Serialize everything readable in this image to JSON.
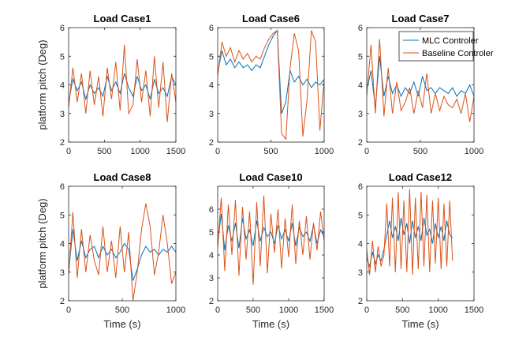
{
  "legend": {
    "location": "top-right of Load Case7",
    "entries": [
      {
        "label": "MLC Controler",
        "color": "#0072BD"
      },
      {
        "label": "Baseline Controler",
        "color": "#D95319"
      }
    ]
  },
  "chart_data": [
    {
      "type": "line",
      "title": "Load Case1",
      "xlabel": "",
      "ylabel": "platform pitch (Deg)",
      "xlim": [
        0,
        1500
      ],
      "ylim": [
        2,
        6
      ],
      "xticks": [
        0,
        500,
        1000,
        1500
      ],
      "yticks": [
        2,
        3,
        4,
        5,
        6
      ],
      "grid": false,
      "series": [
        {
          "name": "MLC Controler",
          "color": "#0072BD",
          "x": [
            0,
            60,
            120,
            180,
            240,
            300,
            360,
            420,
            480,
            540,
            600,
            660,
            720,
            780,
            840,
            900,
            960,
            1020,
            1080,
            1140,
            1200,
            1260,
            1320,
            1380,
            1440,
            1500
          ],
          "y": [
            3.4,
            4.2,
            3.8,
            4.1,
            3.5,
            4.0,
            3.7,
            3.9,
            3.6,
            4.3,
            3.8,
            4.1,
            3.7,
            4.4,
            3.9,
            3.6,
            4.3,
            3.8,
            4.0,
            3.5,
            4.2,
            3.7,
            3.9,
            3.6,
            4.3,
            4.0
          ]
        },
        {
          "name": "Baseline Controler",
          "color": "#D95319",
          "x": [
            0,
            60,
            120,
            180,
            240,
            300,
            360,
            420,
            480,
            540,
            600,
            660,
            720,
            780,
            840,
            900,
            960,
            1020,
            1080,
            1140,
            1200,
            1260,
            1320,
            1380,
            1440,
            1500
          ],
          "y": [
            3.2,
            4.6,
            3.4,
            4.4,
            3.0,
            4.5,
            3.3,
            4.3,
            2.9,
            4.6,
            3.5,
            4.8,
            3.1,
            5.4,
            3.0,
            3.3,
            4.9,
            3.4,
            4.5,
            2.9,
            5.0,
            3.2,
            4.8,
            2.7,
            4.4,
            3.4
          ]
        }
      ]
    },
    {
      "type": "line",
      "title": "Load Case6",
      "xlabel": "",
      "ylabel": "",
      "xlim": [
        0,
        1000
      ],
      "ylim": [
        2,
        6
      ],
      "xticks": [
        0,
        500,
        1000
      ],
      "yticks": [
        2,
        3,
        4,
        5,
        6
      ],
      "grid": false,
      "series": [
        {
          "name": "MLC Controler",
          "color": "#0072BD",
          "x": [
            0,
            40,
            80,
            120,
            160,
            200,
            240,
            280,
            320,
            360,
            400,
            440,
            480,
            520,
            560,
            600,
            640,
            680,
            720,
            760,
            800,
            840,
            880,
            920,
            960,
            1000
          ],
          "y": [
            4.4,
            5.2,
            4.7,
            4.9,
            4.6,
            4.8,
            4.6,
            4.7,
            4.5,
            4.7,
            4.6,
            5.0,
            5.4,
            5.7,
            5.9,
            3.0,
            3.4,
            4.5,
            4.1,
            4.3,
            4.0,
            4.2,
            3.9,
            4.1,
            4.0,
            4.2
          ]
        },
        {
          "name": "Baseline Controler",
          "color": "#D95319",
          "x": [
            0,
            40,
            80,
            120,
            160,
            200,
            240,
            280,
            320,
            360,
            400,
            440,
            480,
            520,
            560,
            600,
            640,
            680,
            720,
            760,
            800,
            840,
            880,
            920,
            960,
            1000
          ],
          "y": [
            4.3,
            5.5,
            5.0,
            5.3,
            4.8,
            5.2,
            4.9,
            5.1,
            4.8,
            5.0,
            4.9,
            5.3,
            5.6,
            5.8,
            5.9,
            2.3,
            2.1,
            4.6,
            5.8,
            5.2,
            2.2,
            3.5,
            5.9,
            5.5,
            2.4,
            4.2
          ]
        }
      ]
    },
    {
      "type": "line",
      "title": "Load Case7",
      "xlabel": "",
      "ylabel": "",
      "xlim": [
        0,
        1000
      ],
      "ylim": [
        2,
        6
      ],
      "xticks": [
        0,
        500,
        1000
      ],
      "yticks": [
        2,
        3,
        4,
        5,
        6
      ],
      "grid": false,
      "series": [
        {
          "name": "MLC Controler",
          "color": "#0072BD",
          "x": [
            0,
            40,
            80,
            120,
            160,
            200,
            240,
            280,
            320,
            360,
            400,
            440,
            480,
            520,
            560,
            600,
            640,
            680,
            720,
            760,
            800,
            840,
            880,
            920,
            960,
            1000
          ],
          "y": [
            3.8,
            4.5,
            3.2,
            5.0,
            3.6,
            4.3,
            3.7,
            4.0,
            3.6,
            3.9,
            3.7,
            4.1,
            3.6,
            4.3,
            3.8,
            3.9,
            3.7,
            3.9,
            3.8,
            3.7,
            3.9,
            3.6,
            3.8,
            3.7,
            4.0,
            3.6
          ]
        },
        {
          "name": "Baseline Controler",
          "color": "#D95319",
          "x": [
            0,
            40,
            80,
            120,
            160,
            200,
            240,
            280,
            320,
            360,
            400,
            440,
            480,
            520,
            560,
            600,
            640,
            680,
            720,
            760,
            800,
            840,
            880,
            920,
            960,
            1000
          ],
          "y": [
            3.6,
            5.4,
            3.0,
            5.6,
            2.9,
            4.6,
            3.0,
            4.1,
            3.1,
            3.4,
            3.9,
            3.0,
            3.8,
            3.2,
            4.4,
            3.0,
            3.7,
            3.1,
            3.6,
            3.3,
            3.2,
            3.5,
            3.0,
            3.7,
            2.7,
            3.6
          ]
        }
      ]
    },
    {
      "type": "line",
      "title": "Load Case8",
      "xlabel": "Time (s)",
      "ylabel": "platform pitch (Deg)",
      "xlim": [
        0,
        1000
      ],
      "ylim": [
        2,
        6
      ],
      "xticks": [
        0,
        500,
        1000
      ],
      "yticks": [
        2,
        3,
        4,
        5,
        6
      ],
      "grid": false,
      "series": [
        {
          "name": "MLC Controler",
          "color": "#0072BD",
          "x": [
            0,
            40,
            80,
            120,
            160,
            200,
            240,
            280,
            320,
            360,
            400,
            440,
            480,
            520,
            560,
            600,
            640,
            680,
            720,
            760,
            800,
            840,
            880,
            920,
            960,
            1000
          ],
          "y": [
            3.0,
            4.5,
            3.4,
            4.1,
            3.5,
            3.8,
            3.9,
            3.5,
            3.9,
            3.6,
            3.8,
            3.5,
            3.7,
            4.0,
            3.8,
            2.7,
            3.1,
            3.6,
            3.9,
            3.7,
            3.8,
            3.6,
            3.8,
            3.7,
            3.9,
            3.7
          ]
        },
        {
          "name": "Baseline Controler",
          "color": "#D95319",
          "x": [
            0,
            40,
            80,
            120,
            160,
            200,
            240,
            280,
            320,
            360,
            400,
            440,
            480,
            520,
            560,
            600,
            640,
            680,
            720,
            760,
            800,
            840,
            880,
            920,
            960,
            1000
          ],
          "y": [
            2.9,
            5.1,
            2.8,
            4.5,
            3.0,
            4.3,
            3.4,
            2.9,
            4.6,
            3.0,
            4.1,
            2.8,
            4.6,
            3.0,
            4.4,
            2.0,
            3.0,
            4.5,
            5.4,
            4.6,
            2.9,
            3.7,
            5.0,
            4.0,
            2.6,
            3.0
          ]
        }
      ]
    },
    {
      "type": "line",
      "title": "Load Case10",
      "xlabel": "Time (s)",
      "ylabel": "",
      "xlim": [
        0,
        1500
      ],
      "ylim": [
        2,
        7
      ],
      "xticks": [
        0,
        500,
        1000,
        1500
      ],
      "yticks": [
        2,
        3,
        4,
        5,
        6
      ],
      "grid": false,
      "series": [
        {
          "name": "MLC Controler",
          "color": "#0072BD",
          "x": [
            0,
            50,
            100,
            150,
            200,
            250,
            300,
            350,
            400,
            450,
            500,
            550,
            600,
            650,
            700,
            750,
            800,
            850,
            900,
            950,
            1000,
            1050,
            1100,
            1150,
            1200,
            1250,
            1300,
            1350,
            1400,
            1450,
            1500
          ],
          "y": [
            4.5,
            5.8,
            4.2,
            5.3,
            4.6,
            5.4,
            4.3,
            5.6,
            4.7,
            5.1,
            4.4,
            5.5,
            4.6,
            5.2,
            4.8,
            5.0,
            4.5,
            5.3,
            4.7,
            5.1,
            4.6,
            5.4,
            4.4,
            5.2,
            4.8,
            5.0,
            4.6,
            5.3,
            4.5,
            5.1,
            4.8
          ]
        },
        {
          "name": "Baseline Controler",
          "color": "#D95319",
          "x": [
            0,
            50,
            100,
            150,
            200,
            250,
            300,
            350,
            400,
            450,
            500,
            550,
            600,
            650,
            700,
            750,
            800,
            850,
            900,
            950,
            1000,
            1050,
            1100,
            1150,
            1200,
            1250,
            1300,
            1350,
            1400,
            1450,
            1500
          ],
          "y": [
            4.3,
            6.5,
            3.3,
            6.2,
            4.0,
            6.4,
            3.1,
            6.1,
            3.8,
            5.9,
            2.7,
            6.3,
            3.5,
            6.6,
            3.2,
            5.8,
            4.1,
            6.0,
            3.4,
            5.6,
            3.9,
            6.2,
            3.6,
            5.5,
            4.0,
            5.7,
            3.8,
            5.4,
            4.2,
            5.9,
            4.6
          ]
        }
      ]
    },
    {
      "type": "line",
      "title": "Load Case12",
      "xlabel": "Time (s)",
      "ylabel": "",
      "xlim": [
        0,
        1500
      ],
      "ylim": [
        2,
        6
      ],
      "xticks": [
        0,
        500,
        1000,
        1500
      ],
      "yticks": [
        2,
        3,
        4,
        5,
        6
      ],
      "grid": false,
      "series": [
        {
          "name": "MLC Controler",
          "color": "#0072BD",
          "x": [
            0,
            40,
            80,
            120,
            160,
            200,
            240,
            280,
            320,
            360,
            400,
            440,
            480,
            520,
            560,
            600,
            640,
            680,
            720,
            760,
            800,
            840,
            880,
            920,
            960,
            1000,
            1040,
            1080,
            1120,
            1160,
            1200
          ],
          "y": [
            3.5,
            3.2,
            3.7,
            3.3,
            3.6,
            3.4,
            3.8,
            4.3,
            4.8,
            4.2,
            4.6,
            4.1,
            4.9,
            4.3,
            4.7,
            4.0,
            4.8,
            4.2,
            4.6,
            4.1,
            4.9,
            4.3,
            4.5,
            4.0,
            4.7,
            4.2,
            4.6,
            4.1,
            4.8,
            4.3,
            4.2
          ]
        },
        {
          "name": "Baseline Controler",
          "color": "#D95319",
          "x": [
            0,
            40,
            80,
            120,
            160,
            200,
            240,
            280,
            320,
            360,
            400,
            440,
            480,
            520,
            560,
            600,
            640,
            680,
            720,
            760,
            800,
            840,
            880,
            920,
            960,
            1000,
            1040,
            1080,
            1120,
            1160,
            1200
          ],
          "y": [
            3.8,
            2.9,
            4.1,
            3.0,
            3.9,
            3.2,
            3.6,
            5.4,
            3.2,
            5.6,
            3.0,
            5.8,
            3.1,
            5.5,
            3.0,
            5.9,
            2.9,
            5.6,
            3.1,
            5.8,
            3.2,
            5.7,
            3.0,
            5.5,
            3.3,
            5.6,
            3.1,
            5.4,
            3.2,
            5.5,
            3.4
          ]
        }
      ]
    }
  ]
}
